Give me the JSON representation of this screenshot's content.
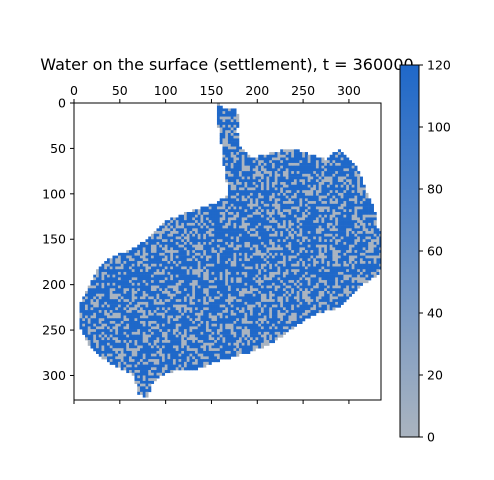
{
  "chart_data": {
    "type": "heatmap",
    "title": "Water on the surface (settlement), t = 360000",
    "xlabel": "",
    "ylabel": "",
    "x_range": [
      0,
      335
    ],
    "y_range": [
      0,
      327
    ],
    "x_ticks": [
      0,
      50,
      100,
      150,
      200,
      250,
      300
    ],
    "y_ticks": [
      0,
      50,
      100,
      150,
      200,
      250,
      300
    ],
    "x_tick_position": "top",
    "grid": false,
    "colorbar": {
      "min": 0,
      "max": 120,
      "ticks": [
        0,
        20,
        40,
        60,
        80,
        100,
        120
      ],
      "color_low": "#aab4c0",
      "color_high": "#1f68c9"
    },
    "region_outline": [
      [
        157,
        0
      ],
      [
        162,
        5
      ],
      [
        175,
        5
      ],
      [
        180,
        15
      ],
      [
        178,
        30
      ],
      [
        180,
        45
      ],
      [
        195,
        60
      ],
      [
        215,
        55
      ],
      [
        235,
        50
      ],
      [
        255,
        55
      ],
      [
        275,
        62
      ],
      [
        290,
        50
      ],
      [
        305,
        65
      ],
      [
        315,
        85
      ],
      [
        320,
        100
      ],
      [
        328,
        115
      ],
      [
        330,
        135
      ],
      [
        340,
        150
      ],
      [
        345,
        170
      ],
      [
        330,
        190
      ],
      [
        315,
        200
      ],
      [
        305,
        210
      ],
      [
        290,
        225
      ],
      [
        270,
        230
      ],
      [
        250,
        240
      ],
      [
        215,
        265
      ],
      [
        190,
        275
      ],
      [
        155,
        285
      ],
      [
        130,
        295
      ],
      [
        110,
        295
      ],
      [
        95,
        300
      ],
      [
        85,
        310
      ],
      [
        80,
        325
      ],
      [
        70,
        320
      ],
      [
        65,
        300
      ],
      [
        45,
        290
      ],
      [
        30,
        280
      ],
      [
        15,
        265
      ],
      [
        5,
        245
      ],
      [
        5,
        225
      ],
      [
        15,
        205
      ],
      [
        25,
        185
      ],
      [
        40,
        170
      ],
      [
        65,
        160
      ],
      [
        80,
        150
      ],
      [
        90,
        140
      ],
      [
        100,
        130
      ],
      [
        125,
        120
      ],
      [
        140,
        115
      ],
      [
        155,
        110
      ],
      [
        170,
        100
      ],
      [
        165,
        80
      ],
      [
        162,
        60
      ],
      [
        160,
        40
      ],
      [
        156,
        20
      ]
    ]
  }
}
